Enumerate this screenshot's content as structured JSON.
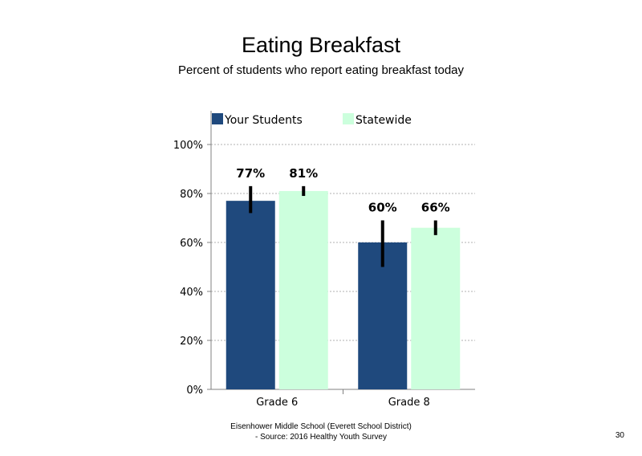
{
  "chart_data": {
    "type": "bar",
    "title": "Eating Breakfast",
    "subtitle": "Percent of students who report eating breakfast today",
    "categories": [
      "Grade 6",
      "Grade 8"
    ],
    "series": [
      {
        "name": "Your Students",
        "color": "#1F497D",
        "values": [
          77,
          60
        ],
        "labels": [
          "77%",
          "60%"
        ],
        "error_low": [
          72,
          50
        ],
        "error_high": [
          83,
          69
        ]
      },
      {
        "name": "Statewide",
        "color": "#CCFFDD",
        "values": [
          81,
          66
        ],
        "labels": [
          "81%",
          "66%"
        ],
        "error_low": [
          79,
          63
        ],
        "error_high": [
          83,
          69
        ]
      }
    ],
    "ylim": [
      0,
      100
    ],
    "yticks": [
      0,
      20,
      40,
      60,
      80,
      100
    ],
    "ytick_labels": [
      "0%",
      "20%",
      "40%",
      "60%",
      "80%",
      "100%"
    ],
    "xlabel": "",
    "ylabel": "",
    "grid": "dotted horizontal",
    "legend_position": "top-left"
  },
  "footer": {
    "line1": "Eisenhower Middle School (Everett School District)",
    "line2": "- Source: 2016 Healthy  Youth Survey"
  },
  "page_number": "30"
}
